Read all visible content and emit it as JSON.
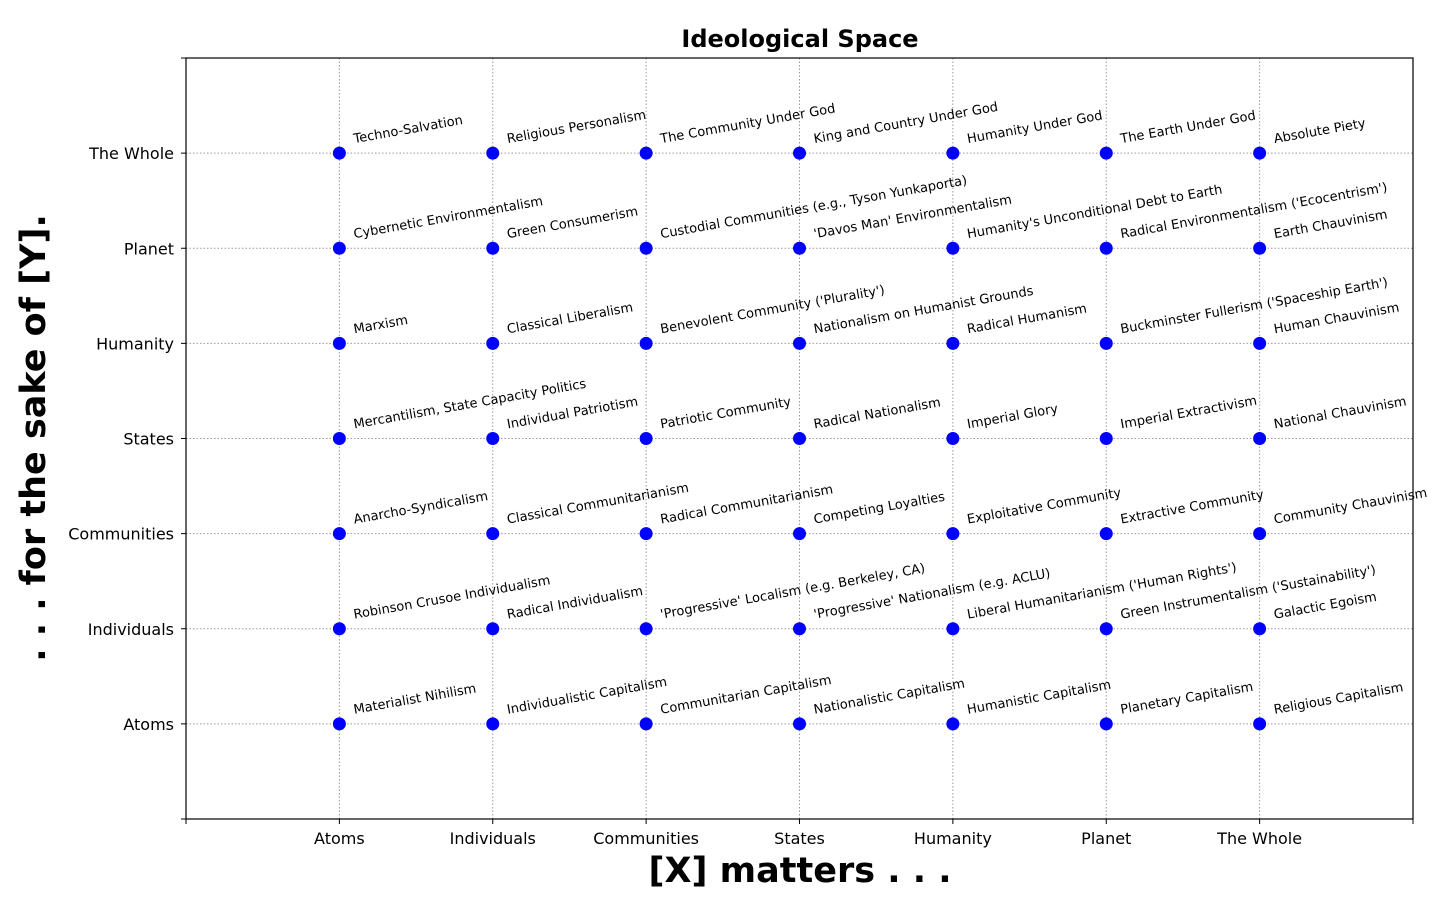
{
  "chart_data": {
    "type": "scatter",
    "title": "Ideological Space",
    "xlabel": "[X] matters . . .",
    "ylabel": ". . . for the sake of [Y].",
    "x_categories": [
      "Atoms",
      "Individuals",
      "Communities",
      "States",
      "Humanity",
      "Planet",
      "The Whole"
    ],
    "y_categories": [
      "Atoms",
      "Individuals",
      "Communities",
      "States",
      "Humanity",
      "Planet",
      "The Whole"
    ],
    "xlim": [
      -1,
      7
    ],
    "ylim": [
      -1,
      7
    ],
    "grid": true,
    "point_color": "#0000ff",
    "label_rotation_deg": 10,
    "points": [
      {
        "x": "Atoms",
        "y": "Atoms",
        "label": "Materialist Nihilism"
      },
      {
        "x": "Individuals",
        "y": "Atoms",
        "label": "Individualistic Capitalism"
      },
      {
        "x": "Communities",
        "y": "Atoms",
        "label": "Communitarian Capitalism"
      },
      {
        "x": "States",
        "y": "Atoms",
        "label": "Nationalistic Capitalism"
      },
      {
        "x": "Humanity",
        "y": "Atoms",
        "label": "Humanistic Capitalism"
      },
      {
        "x": "Planet",
        "y": "Atoms",
        "label": "Planetary Capitalism"
      },
      {
        "x": "The Whole",
        "y": "Atoms",
        "label": "Religious Capitalism"
      },
      {
        "x": "Atoms",
        "y": "Individuals",
        "label": "Robinson Crusoe Individualism"
      },
      {
        "x": "Individuals",
        "y": "Individuals",
        "label": "Radical Individualism"
      },
      {
        "x": "Communities",
        "y": "Individuals",
        "label": "'Progressive' Localism (e.g. Berkeley, CA)"
      },
      {
        "x": "States",
        "y": "Individuals",
        "label": "'Progressive' Nationalism (e.g. ACLU)"
      },
      {
        "x": "Humanity",
        "y": "Individuals",
        "label": "Liberal Humanitarianism ('Human Rights')"
      },
      {
        "x": "Planet",
        "y": "Individuals",
        "label": "Green Instrumentalism ('Sustainability')"
      },
      {
        "x": "The Whole",
        "y": "Individuals",
        "label": "Galactic Egoism"
      },
      {
        "x": "Atoms",
        "y": "Communities",
        "label": "Anarcho-Syndicalism"
      },
      {
        "x": "Individuals",
        "y": "Communities",
        "label": "Classical Communitarianism"
      },
      {
        "x": "Communities",
        "y": "Communities",
        "label": "Radical Communitarianism"
      },
      {
        "x": "States",
        "y": "Communities",
        "label": "Competing Loyalties"
      },
      {
        "x": "Humanity",
        "y": "Communities",
        "label": "Exploitative Community"
      },
      {
        "x": "Planet",
        "y": "Communities",
        "label": "Extractive Community"
      },
      {
        "x": "The Whole",
        "y": "Communities",
        "label": "Community Chauvinism"
      },
      {
        "x": "Atoms",
        "y": "States",
        "label": "Mercantilism, State Capacity Politics"
      },
      {
        "x": "Individuals",
        "y": "States",
        "label": "Individual Patriotism"
      },
      {
        "x": "Communities",
        "y": "States",
        "label": "Patriotic Community"
      },
      {
        "x": "States",
        "y": "States",
        "label": "Radical Nationalism"
      },
      {
        "x": "Humanity",
        "y": "States",
        "label": "Imperial Glory"
      },
      {
        "x": "Planet",
        "y": "States",
        "label": "Imperial Extractivism"
      },
      {
        "x": "The Whole",
        "y": "States",
        "label": "National Chauvinism"
      },
      {
        "x": "Atoms",
        "y": "Humanity",
        "label": "Marxism"
      },
      {
        "x": "Individuals",
        "y": "Humanity",
        "label": "Classical Liberalism"
      },
      {
        "x": "Communities",
        "y": "Humanity",
        "label": "Benevolent Community ('Plurality')"
      },
      {
        "x": "States",
        "y": "Humanity",
        "label": "Nationalism on Humanist Grounds"
      },
      {
        "x": "Humanity",
        "y": "Humanity",
        "label": "Radical Humanism"
      },
      {
        "x": "Planet",
        "y": "Humanity",
        "label": "Buckminster Fullerism ('Spaceship Earth')"
      },
      {
        "x": "The Whole",
        "y": "Humanity",
        "label": "Human Chauvinism"
      },
      {
        "x": "Atoms",
        "y": "Planet",
        "label": "Cybernetic Environmentalism"
      },
      {
        "x": "Individuals",
        "y": "Planet",
        "label": "Green Consumerism"
      },
      {
        "x": "Communities",
        "y": "Planet",
        "label": "Custodial Communities (e.g., Tyson Yunkaporta)"
      },
      {
        "x": "States",
        "y": "Planet",
        "label": "'Davos Man' Environmentalism"
      },
      {
        "x": "Humanity",
        "y": "Planet",
        "label": "Humanity's Unconditional Debt to Earth"
      },
      {
        "x": "Planet",
        "y": "Planet",
        "label": "Radical Environmentalism ('Ecocentrism')"
      },
      {
        "x": "The Whole",
        "y": "Planet",
        "label": "Earth Chauvinism"
      },
      {
        "x": "Atoms",
        "y": "The Whole",
        "label": "Techno-Salvation"
      },
      {
        "x": "Individuals",
        "y": "The Whole",
        "label": "Religious Personalism"
      },
      {
        "x": "Communities",
        "y": "The Whole",
        "label": "The Community Under God"
      },
      {
        "x": "States",
        "y": "The Whole",
        "label": "King and Country Under God"
      },
      {
        "x": "Humanity",
        "y": "The Whole",
        "label": "Humanity Under God"
      },
      {
        "x": "Planet",
        "y": "The Whole",
        "label": "The Earth Under God"
      },
      {
        "x": "The Whole",
        "y": "The Whole",
        "label": "Absolute Piety"
      }
    ]
  }
}
